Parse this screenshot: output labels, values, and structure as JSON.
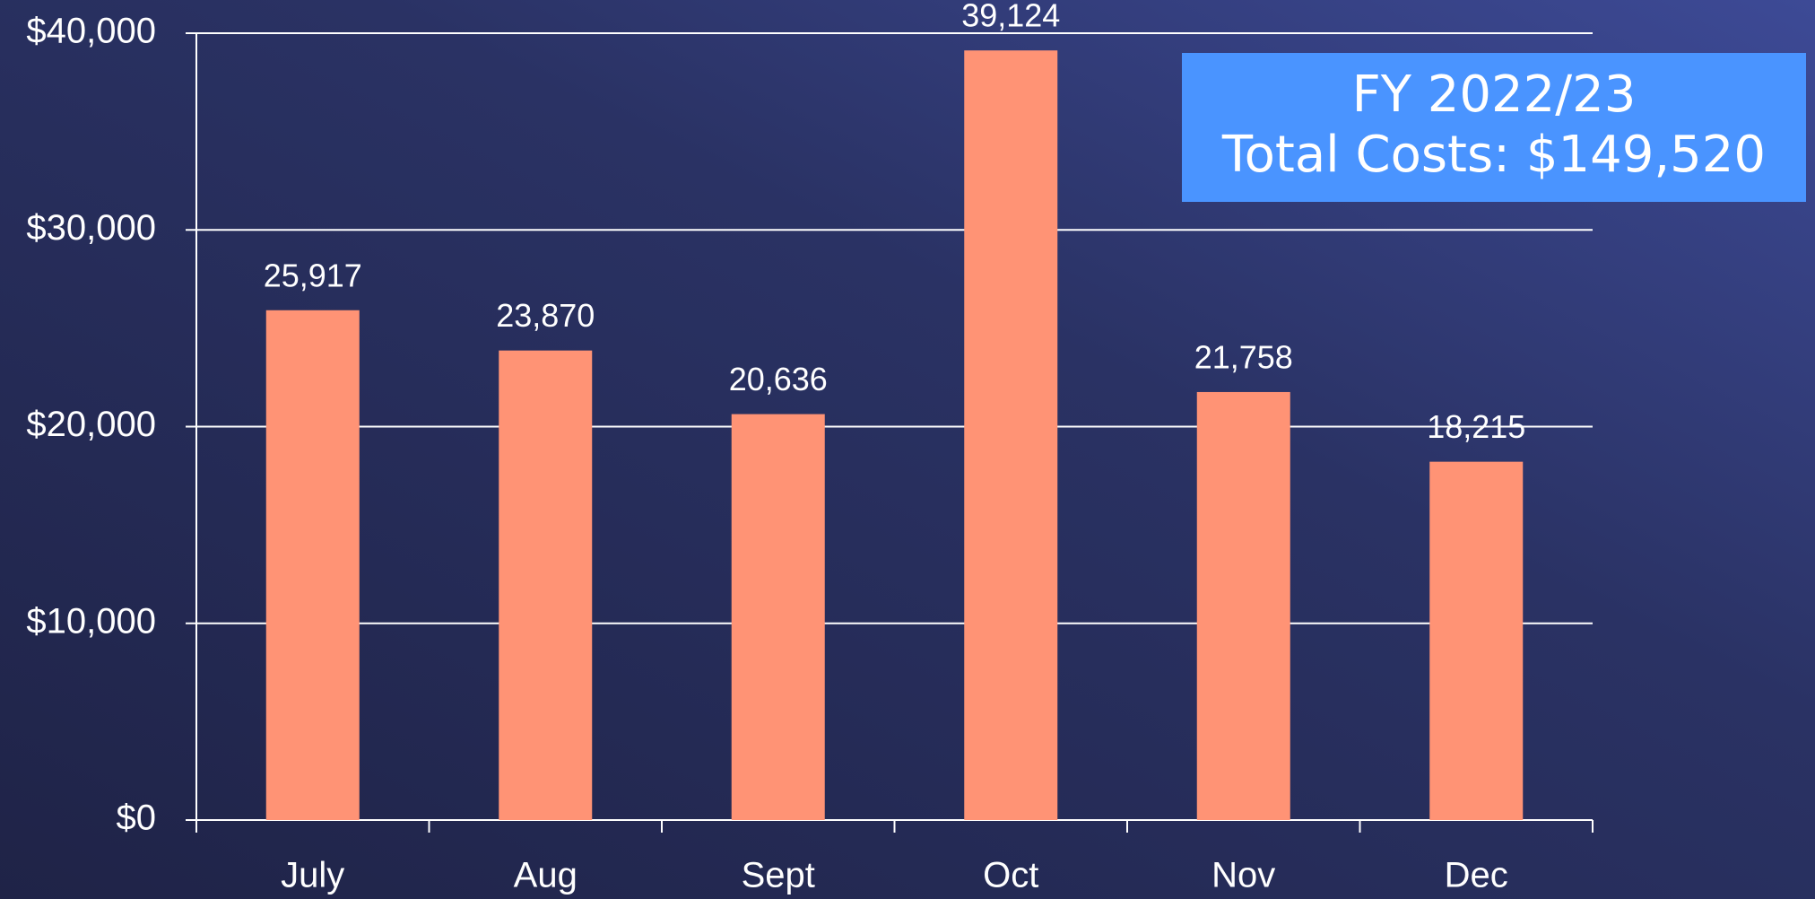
{
  "chart_data": {
    "type": "bar",
    "categories": [
      "July",
      "Aug",
      "Sept",
      "Oct",
      "Nov",
      "Dec"
    ],
    "values": [
      25917,
      23870,
      20636,
      39124,
      21758,
      18215
    ],
    "value_labels": [
      "25,917",
      "23,870",
      "20,636",
      "39,124",
      "21,758",
      "18,215"
    ],
    "color": "#ff9375",
    "ylim": [
      0,
      40000
    ],
    "yticks": [
      {
        "value": 0,
        "label": "$0"
      },
      {
        "value": 10000,
        "label": "$10,000"
      },
      {
        "value": 20000,
        "label": "$20,000"
      },
      {
        "value": 30000,
        "label": "$30,000"
      },
      {
        "value": 40000,
        "label": "$40,000"
      }
    ],
    "grid": true,
    "annotation": [
      "FY 2022/23",
      "Total Costs: $149,520"
    ]
  }
}
